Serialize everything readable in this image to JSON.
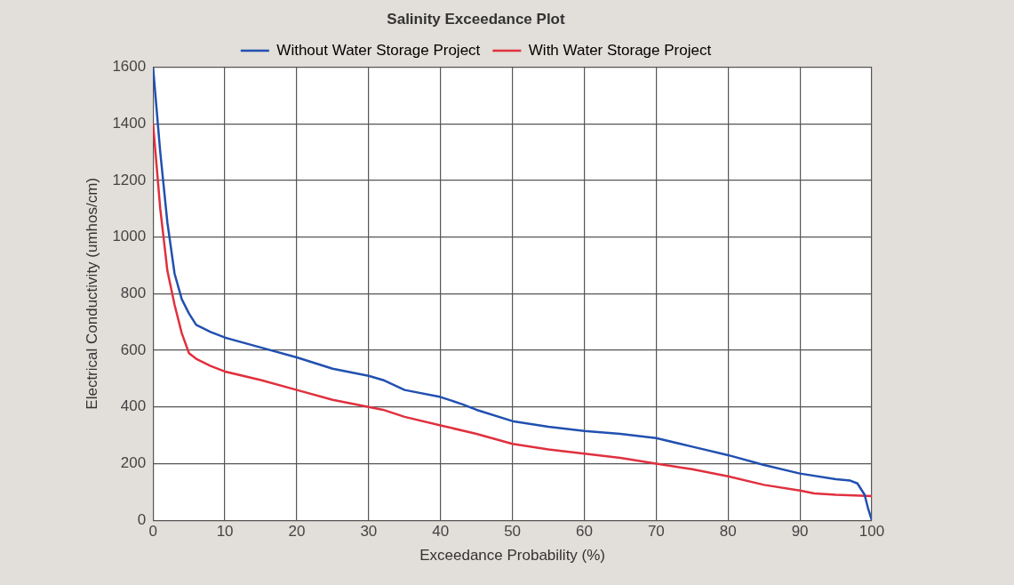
{
  "chart_data": {
    "type": "line",
    "title": "Salinity Exceedance Plot",
    "xlabel": "Exceedance Probability (%)",
    "ylabel": "Electrical Conductivity (umhos/cm)",
    "xlim": [
      0,
      100
    ],
    "xticks": [
      0,
      10,
      20,
      30,
      40,
      50,
      60,
      70,
      80,
      90,
      100
    ],
    "ylim": [
      0,
      1600
    ],
    "yticks": [
      0,
      200,
      400,
      600,
      800,
      1000,
      1200,
      1400,
      1600
    ],
    "grid": true,
    "legend": "top",
    "marker": "none",
    "line_style": "solid",
    "series": [
      {
        "name": "Without Water Storage Project",
        "color": "#2150b0",
        "x": [
          0,
          1,
          2,
          3,
          4,
          5,
          6,
          8,
          10,
          15,
          20,
          25,
          30,
          32,
          35,
          40,
          43,
          45,
          50,
          55,
          60,
          65,
          70,
          75,
          80,
          85,
          90,
          95,
          97,
          98,
          99,
          99.5,
          100
        ],
        "values": [
          1600,
          1300,
          1050,
          870,
          780,
          730,
          690,
          665,
          645,
          610,
          575,
          535,
          510,
          495,
          460,
          435,
          410,
          390,
          350,
          330,
          315,
          305,
          290,
          260,
          230,
          195,
          165,
          145,
          140,
          130,
          90,
          40,
          0
        ]
      },
      {
        "name": "With Water Storage Project",
        "color": "#e0303e",
        "x": [
          0,
          1,
          2,
          3,
          4,
          5,
          6,
          8,
          10,
          15,
          20,
          25,
          30,
          32,
          35,
          40,
          45,
          50,
          55,
          60,
          65,
          70,
          75,
          80,
          85,
          90,
          92,
          95,
          100
        ],
        "values": [
          1400,
          1100,
          880,
          760,
          660,
          590,
          570,
          545,
          525,
          495,
          460,
          425,
          400,
          390,
          365,
          335,
          305,
          270,
          250,
          235,
          220,
          200,
          180,
          155,
          125,
          105,
          95,
          90,
          85
        ]
      }
    ]
  }
}
